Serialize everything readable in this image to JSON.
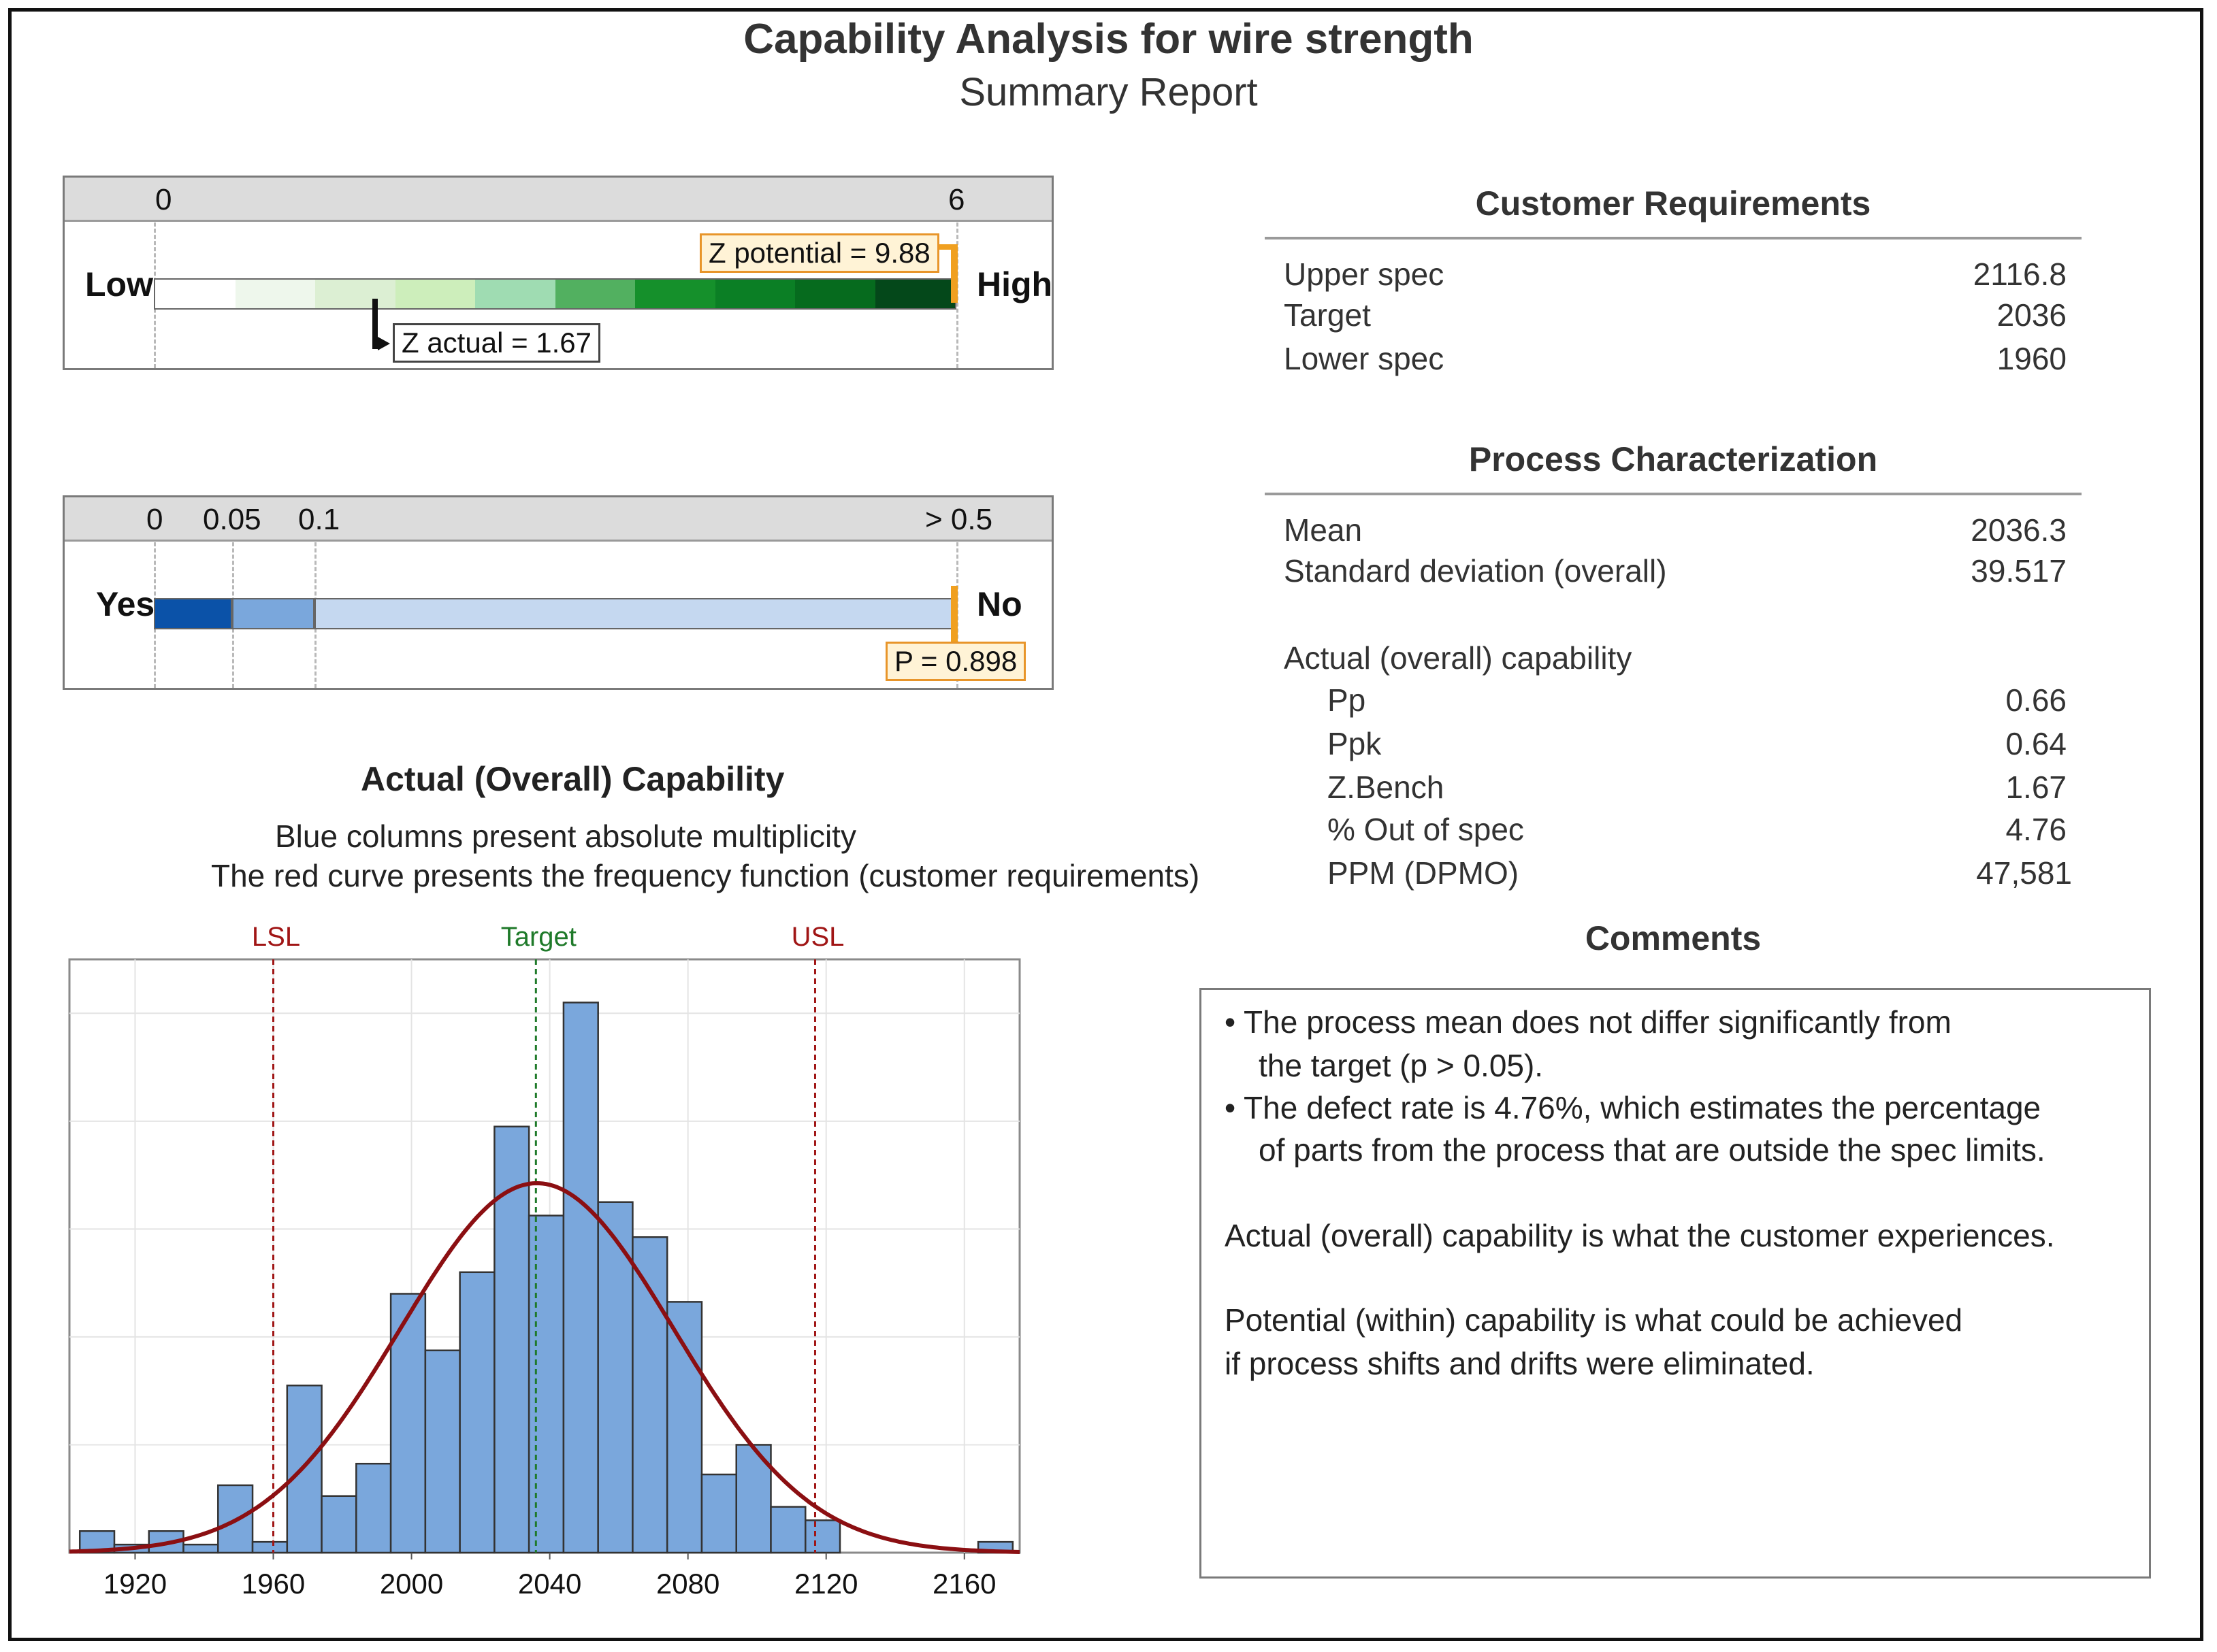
{
  "header": {
    "title": "Capability Analysis for wire strength",
    "subtitle": "Summary Report"
  },
  "z_panel": {
    "tick_left": "0",
    "tick_right": "6",
    "low_label": "Low",
    "high_label": "High",
    "z_potential_label": "Z potential = 9.88",
    "z_actual_label": "Z actual = 1.67",
    "z_actual": 1.67,
    "z_potential": 9.88,
    "scale_max": 6,
    "colors": [
      "#ffffff",
      "#eef7ec",
      "#dcefd3",
      "#cdeebb",
      "#9fdcb2",
      "#52b060",
      "#15902b",
      "#0b7f25",
      "#066b1e",
      "#04481a"
    ]
  },
  "p_panel": {
    "ticks": [
      "0",
      "0.05",
      "0.1",
      "> 0.5"
    ],
    "yes_label": "Yes",
    "no_label": "No",
    "p_label": "P = 0.898",
    "p_value": 0.898,
    "colors": [
      "#0b52a8",
      "#7aa7dc",
      "#c5d8f0"
    ]
  },
  "customer_requirements": {
    "title": "Customer Requirements",
    "rows": [
      {
        "label": "Upper spec",
        "value": "2116.8"
      },
      {
        "label": "Target",
        "value": "2036"
      },
      {
        "label": "Lower spec",
        "value": "1960"
      }
    ]
  },
  "process_characterization": {
    "title": "Process Characterization",
    "rows": [
      {
        "label": "Mean",
        "value": "2036.3"
      },
      {
        "label": "Standard deviation (overall)",
        "value": "39.517"
      }
    ],
    "capability_heading": "Actual (overall) capability",
    "capability_rows": [
      {
        "label": "Pp",
        "value": "0.66"
      },
      {
        "label": "Ppk",
        "value": "0.64"
      },
      {
        "label": "Z.Bench",
        "value": "1.67"
      },
      {
        "label": "% Out of spec",
        "value": "4.76"
      },
      {
        "label": "PPM (DPMO)",
        "value": "47,581"
      }
    ]
  },
  "comments": {
    "title": "Comments",
    "lines": [
      "• The process mean does not differ significantly from",
      "the target (p > 0.05).",
      "• The defect rate is 4.76%, which estimates the percentage",
      "of parts from the process that are outside the spec limits.",
      "Actual (overall) capability is what the customer experiences.",
      "Potential (within) capability is what could be achieved",
      "if process shifts and drifts were eliminated."
    ]
  },
  "capability_section": {
    "title": "Actual (Overall) Capability",
    "line1": "Blue columns present absolute multiplicity",
    "line2": "The red curve presents the frequency function (customer requirements)"
  },
  "chart_data": {
    "type": "bar",
    "title": "Actual (Overall) Capability",
    "xlim": [
      1901,
      2176
    ],
    "ylim": [
      0,
      22
    ],
    "x_ticks": [
      1920,
      1960,
      2000,
      2040,
      2080,
      2120,
      2160
    ],
    "bin_width": 10,
    "bins": [
      {
        "x0": 1904,
        "count": 0.8
      },
      {
        "x0": 1914,
        "count": 0.3
      },
      {
        "x0": 1924,
        "count": 0.8
      },
      {
        "x0": 1934,
        "count": 0.3
      },
      {
        "x0": 1944,
        "count": 2.5
      },
      {
        "x0": 1954,
        "count": 0.4
      },
      {
        "x0": 1964,
        "count": 6.2
      },
      {
        "x0": 1974,
        "count": 2.1
      },
      {
        "x0": 1984,
        "count": 3.3
      },
      {
        "x0": 1994,
        "count": 9.6
      },
      {
        "x0": 2004,
        "count": 7.5
      },
      {
        "x0": 2014,
        "count": 10.4
      },
      {
        "x0": 2024,
        "count": 15.8
      },
      {
        "x0": 2034,
        "count": 12.5
      },
      {
        "x0": 2044,
        "count": 20.4
      },
      {
        "x0": 2054,
        "count": 13.0
      },
      {
        "x0": 2064,
        "count": 11.7
      },
      {
        "x0": 2074,
        "count": 9.3
      },
      {
        "x0": 2084,
        "count": 2.9
      },
      {
        "x0": 2094,
        "count": 4.0
      },
      {
        "x0": 2104,
        "count": 1.7
      },
      {
        "x0": 2114,
        "count": 1.2
      },
      {
        "x0": 2124,
        "count": 0
      },
      {
        "x0": 2134,
        "count": 0
      },
      {
        "x0": 2144,
        "count": 0
      },
      {
        "x0": 2154,
        "count": 0
      },
      {
        "x0": 2164,
        "count": 0.4
      }
    ],
    "curve": {
      "mean": 2036.3,
      "sd": 39.517,
      "peak": 13.7,
      "color": "#8b0f12"
    },
    "ref_lines": [
      {
        "label": "LSL",
        "x": 1960,
        "color": "#a01515"
      },
      {
        "label": "Target",
        "x": 2036,
        "color": "#1f7a2a"
      },
      {
        "label": "USL",
        "x": 2116.8,
        "color": "#a01515"
      }
    ],
    "bar_color": "#7aa7dc",
    "grid": true
  }
}
